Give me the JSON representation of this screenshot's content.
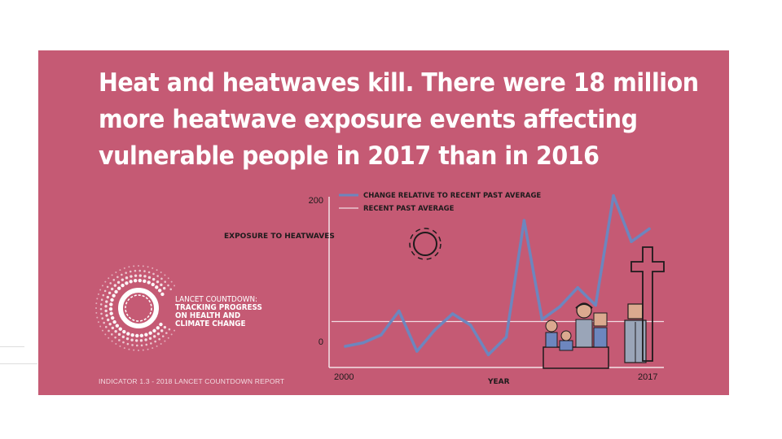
{
  "headline": {
    "line1": "Heat and heatwaves kill. There were 18 million",
    "line2": "more heatwave exposure events affecting",
    "line3": "vulnerable people in 2017 than in 2016"
  },
  "logo": {
    "line1": "LANCET COUNTDOWN:",
    "line2": "TRACKING PROGRESS",
    "line3": "ON HEALTH AND",
    "line4": "CLIMATE CHANGE"
  },
  "footer": "INDICATOR 1.3 - 2018 LANCET COUNTDOWN REPORT",
  "colors": {
    "background": "#c55a74",
    "series_line": "#6d86be",
    "average_line": "#f2dce2",
    "text": "#1e1b1c"
  },
  "icons": [
    "sun-icon",
    "family-icon",
    "grave-cross-icon",
    "elderly-person-icon"
  ],
  "chart_data": {
    "type": "line",
    "title": "",
    "xlabel": "YEAR",
    "ylabel": "EXPOSURE TO HEATWAVES",
    "xlim": [
      2000,
      2017
    ],
    "ylim": [
      0,
      200
    ],
    "x_ticks": [
      "2000",
      "2017"
    ],
    "y_ticks": [
      "0",
      "200"
    ],
    "grid": false,
    "legend_position": "top-left",
    "series": [
      {
        "name": "CHANGE RELATIVE TO RECENT PAST AVERAGE",
        "x": [
          2000,
          2001,
          2002,
          2003,
          2004,
          2005,
          2006,
          2007,
          2008,
          2009,
          2010,
          2011,
          2012,
          2013,
          2014,
          2015,
          2016,
          2017
        ],
        "values": [
          -8,
          -3,
          8,
          42,
          -15,
          15,
          38,
          22,
          -20,
          5,
          170,
          30,
          48,
          75,
          50,
          205,
          140,
          158
        ]
      }
    ],
    "reference_lines": [
      {
        "name": "RECENT PAST AVERAGE",
        "value": 27
      }
    ]
  }
}
